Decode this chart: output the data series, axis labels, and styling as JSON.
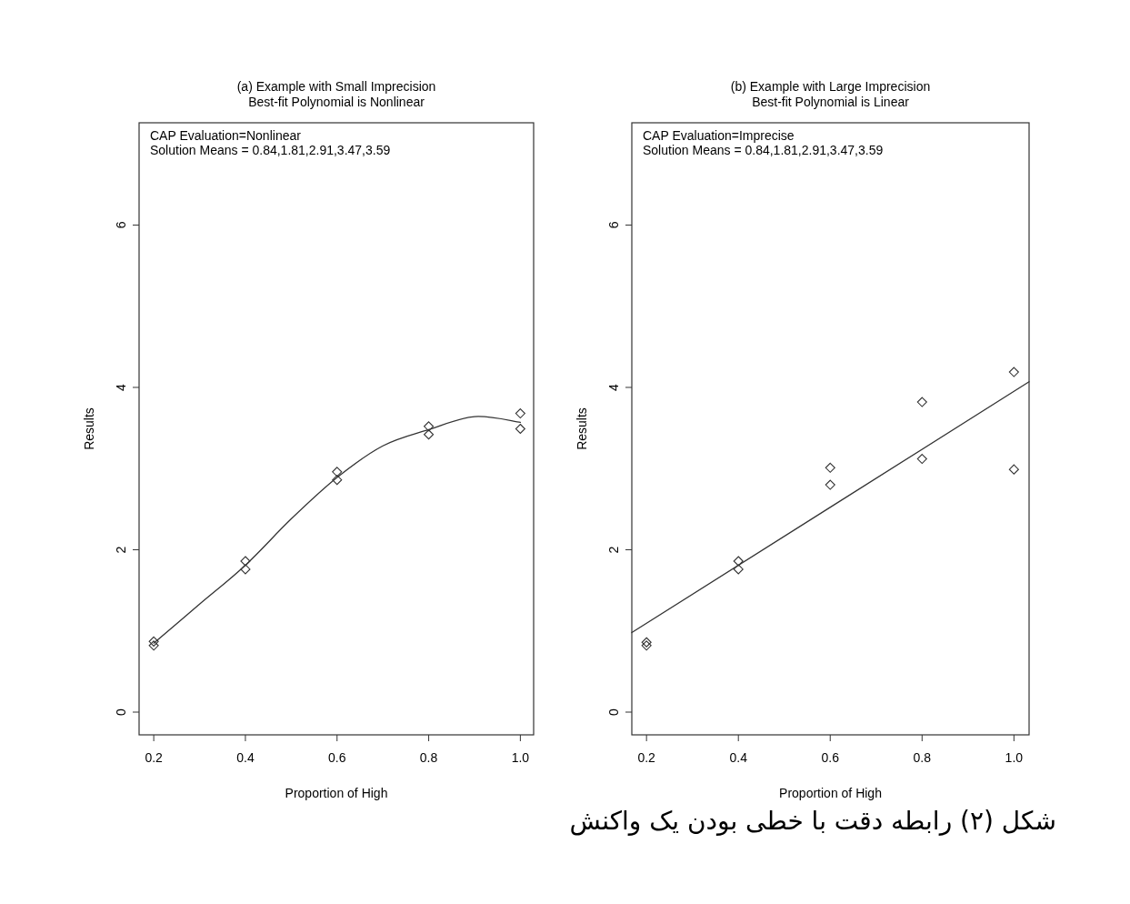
{
  "chart_data": [
    {
      "type": "scatter",
      "title": "(a) Example with Small Imprecision",
      "subtitle": "Best-fit Polynomial is Nonlinear",
      "xlabel": "Proportion of High",
      "ylabel": "Results",
      "xlim": [
        0.168,
        1.029
      ],
      "ylim": [
        -0.28,
        7.26
      ],
      "xticks": [
        {
          "value": 0.2,
          "label": "0.2"
        },
        {
          "value": 0.4,
          "label": "0.4"
        },
        {
          "value": 0.6,
          "label": "0.6"
        },
        {
          "value": 0.8,
          "label": "0.8"
        },
        {
          "value": 1.0,
          "label": "1.0"
        }
      ],
      "yticks": [
        0,
        2,
        4,
        6
      ],
      "grid": false,
      "series": [
        {
          "marker": "diamond",
          "color": "#333333",
          "x": [
            0.2,
            0.2,
            0.4,
            0.4,
            0.6,
            0.6,
            0.8,
            0.8,
            1.0,
            1.0
          ],
          "values": [
            0.87,
            0.82,
            1.86,
            1.76,
            2.96,
            2.86,
            3.52,
            3.42,
            3.68,
            3.49
          ]
        },
        {
          "type": "line",
          "color": "#333333",
          "x": [
            0.2,
            0.3,
            0.4,
            0.5,
            0.6,
            0.7,
            0.8,
            0.9,
            1.0
          ],
          "values": [
            0.85,
            1.33,
            1.81,
            2.38,
            2.89,
            3.28,
            3.48,
            3.64,
            3.57
          ]
        }
      ],
      "annotations": [
        "CAP Evaluation=Nonlinear",
        "Solution Means = 0.84,1.81,2.91,3.47,3.59"
      ]
    },
    {
      "type": "scatter",
      "title": "(b) Example with Large Imprecision",
      "subtitle": "Best-fit Polynomial is Linear",
      "xlabel": "Proportion of High",
      "ylabel": "Results",
      "xlim": [
        0.168,
        1.033
      ],
      "ylim": [
        -0.28,
        7.26
      ],
      "xticks": [
        {
          "value": 0.2,
          "label": "0.2"
        },
        {
          "value": 0.4,
          "label": "0.4"
        },
        {
          "value": 0.6,
          "label": "0.6"
        },
        {
          "value": 0.8,
          "label": "0.8"
        },
        {
          "value": 1.0,
          "label": "1.0"
        }
      ],
      "yticks": [
        0,
        2,
        4,
        6
      ],
      "grid": false,
      "series": [
        {
          "marker": "diamond",
          "color": "#333333",
          "x": [
            0.2,
            0.2,
            0.4,
            0.4,
            0.6,
            0.6,
            0.8,
            0.8,
            1.0,
            1.0
          ],
          "values": [
            0.86,
            0.82,
            1.86,
            1.76,
            3.01,
            2.8,
            3.82,
            3.12,
            4.19,
            2.99
          ]
        },
        {
          "type": "line",
          "color": "#333333",
          "x": [
            0.168,
            1.033
          ],
          "values": [
            0.98,
            4.07
          ]
        }
      ],
      "annotations": [
        "CAP Evaluation=Imprecise",
        "Solution Means = 0.84,1.81,2.91,3.47,3.59",
        "شکل (۲) رابطه دقت با خطی بودن یک واکنش"
      ]
    }
  ]
}
